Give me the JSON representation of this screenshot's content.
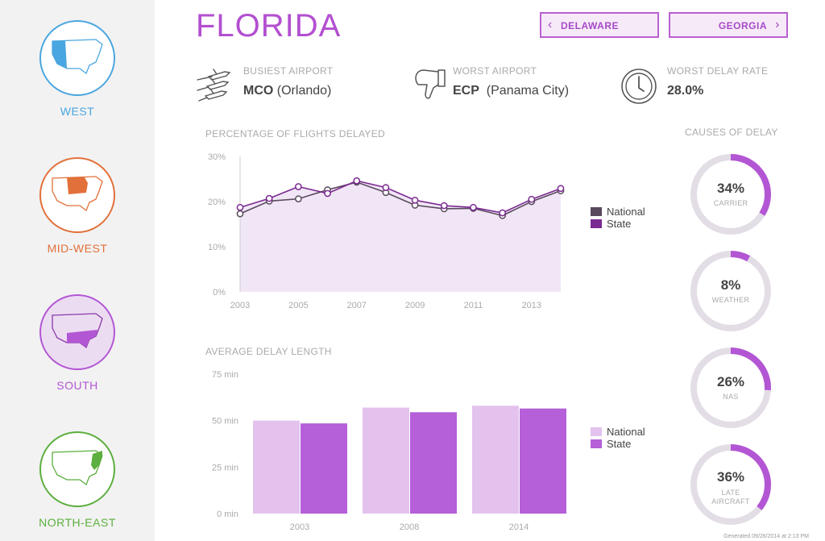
{
  "sidebar": {
    "regions": [
      {
        "label": "WEST",
        "color": "#4aa6e0"
      },
      {
        "label": "MID-WEST",
        "color": "#e2703a"
      },
      {
        "label": "SOUTH",
        "color": "#b356d4"
      },
      {
        "label": "NORTH-EAST",
        "color": "#5cae3e"
      }
    ]
  },
  "header": {
    "title": "FLORIDA",
    "prev_state": "DELAWARE",
    "next_state": "GEORGIA"
  },
  "stats": {
    "busiest": {
      "label": "BUSIEST AIRPORT",
      "code": "MCO",
      "city": "(Orlando)"
    },
    "worst": {
      "label": "WORST AIRPORT",
      "code": "ECP",
      "city": "(Panama City)"
    },
    "delay_rate": {
      "label": "WORST DELAY RATE",
      "value": "28.0%"
    }
  },
  "line_section": {
    "title": "PERCENTAGE OF FLIGHTS DELAYED",
    "legend": {
      "national": "National",
      "state": "State"
    }
  },
  "bar_section": {
    "title": "AVERAGE DELAY LENGTH",
    "legend": {
      "national": "National",
      "state": "State"
    }
  },
  "causes": {
    "title": "CAUSES OF DELAY",
    "items": [
      {
        "pct": "34%",
        "label": "CARRIER",
        "value": 34
      },
      {
        "pct": "8%",
        "label": "WEATHER",
        "value": 8
      },
      {
        "pct": "26%",
        "label": "NAS",
        "value": 26
      },
      {
        "pct": "36%",
        "label": "LATE AIRCRAFT",
        "value": 36
      }
    ]
  },
  "footer": "Generated 09/26/2014 at 2:13 PM",
  "colors": {
    "accent": "#b34fd1",
    "state_line": "#7b2a91",
    "national_line": "#5a4a5e",
    "area_fill": "#f1e6f6",
    "bar_national": "#e3c2ee",
    "bar_state": "#b55fd8",
    "donut_track": "#e3dde6",
    "donut_arc": "#b356d4"
  },
  "chart_data": [
    {
      "type": "line",
      "title": "PERCENTAGE OF FLIGHTS DELAYED",
      "x": [
        2003,
        2004,
        2005,
        2006,
        2007,
        2008,
        2009,
        2010,
        2011,
        2012,
        2013,
        2014
      ],
      "x_tick_labels": [
        "2003",
        "2005",
        "2007",
        "2009",
        "2011",
        "2013"
      ],
      "y_tick_labels": [
        "30%",
        "20%",
        "10%",
        "0%"
      ],
      "ylim": [
        0,
        30
      ],
      "series": [
        {
          "name": "National",
          "values": [
            17.3,
            20.1,
            20.6,
            22.6,
            24.3,
            22.0,
            19.2,
            18.4,
            18.5,
            16.9,
            20.0,
            22.4
          ]
        },
        {
          "name": "State",
          "values": [
            18.7,
            20.7,
            23.3,
            21.8,
            24.6,
            23.1,
            20.3,
            19.1,
            18.7,
            17.5,
            20.5,
            22.9
          ]
        }
      ],
      "grid": false,
      "legend": "right"
    },
    {
      "type": "bar",
      "title": "AVERAGE DELAY LENGTH",
      "categories": [
        "2003",
        "2008",
        "2014"
      ],
      "y_tick_labels": [
        "75 min",
        "50 min",
        "25 min",
        "0 min"
      ],
      "ylim": [
        0,
        75
      ],
      "series": [
        {
          "name": "National",
          "values": [
            50,
            57,
            58
          ]
        },
        {
          "name": "State",
          "values": [
            48.5,
            54.5,
            56.5
          ]
        }
      ],
      "legend": "right"
    }
  ]
}
